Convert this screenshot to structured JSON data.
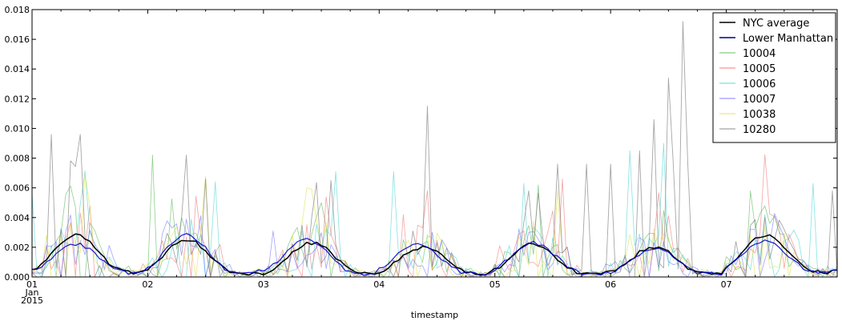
{
  "chart_data": {
    "type": "line",
    "title": "",
    "xlabel": "timestamp",
    "ylabel": "",
    "xlim": [
      "2015-01-01 00:00",
      "2015-01-07 23:00"
    ],
    "ylim": [
      0,
      0.018
    ],
    "grid": false,
    "legend_position": "top-right",
    "x_ticks": [
      {
        "date": "2015-01-01",
        "label": "01",
        "sub1": "Jan",
        "sub2": "2015"
      },
      {
        "date": "2015-01-02",
        "label": "02"
      },
      {
        "date": "2015-01-03",
        "label": "03"
      },
      {
        "date": "2015-01-04",
        "label": "04"
      },
      {
        "date": "2015-01-05",
        "label": "05"
      },
      {
        "date": "2015-01-06",
        "label": "06"
      },
      {
        "date": "2015-01-07",
        "label": "07"
      }
    ],
    "y_ticks": [
      "0.000",
      "0.002",
      "0.004",
      "0.006",
      "0.008",
      "0.010",
      "0.012",
      "0.014",
      "0.016",
      "0.018"
    ],
    "day_profiles": {
      "nyc_average": [
        {
          "date": "2015-01-01",
          "peak": 0.0028,
          "trough": 0.0003,
          "peak_hour": 9
        },
        {
          "date": "2015-01-02",
          "peak": 0.0025,
          "trough": 0.0002,
          "peak_hour": 8
        },
        {
          "date": "2015-01-03",
          "peak": 0.0023,
          "trough": 0.0002,
          "peak_hour": 10
        },
        {
          "date": "2015-01-04",
          "peak": 0.002,
          "trough": 0.0002,
          "peak_hour": 9
        },
        {
          "date": "2015-01-05",
          "peak": 0.0022,
          "trough": 0.0002,
          "peak_hour": 8
        },
        {
          "date": "2015-01-06",
          "peak": 0.002,
          "trough": 0.0002,
          "peak_hour": 9
        },
        {
          "date": "2015-01-07",
          "peak": 0.0028,
          "trough": 0.0003,
          "peak_hour": 8
        }
      ],
      "lower_manhattan": [
        {
          "date": "2015-01-01",
          "peak": 0.0022,
          "trough": 0.0003,
          "peak_hour": 9
        },
        {
          "date": "2015-01-02",
          "peak": 0.0028,
          "trough": 0.0002,
          "peak_hour": 8
        },
        {
          "date": "2015-01-03",
          "peak": 0.0025,
          "trough": 0.0002,
          "peak_hour": 9
        },
        {
          "date": "2015-01-04",
          "peak": 0.0022,
          "trough": 0.0002,
          "peak_hour": 8
        },
        {
          "date": "2015-01-05",
          "peak": 0.0023,
          "trough": 0.0002,
          "peak_hour": 8
        },
        {
          "date": "2015-01-06",
          "peak": 0.0019,
          "trough": 0.0002,
          "peak_hour": 9
        },
        {
          "date": "2015-01-07",
          "peak": 0.0024,
          "trough": 0.0003,
          "peak_hour": 8
        }
      ]
    },
    "spikes": {
      "10004": [
        [
          "2015-01-02 01:00",
          0.0082
        ],
        [
          "2015-01-03 12:00",
          0.005
        ],
        [
          "2015-01-05 09:00",
          0.0062
        ],
        [
          "2015-01-07 05:00",
          0.0058
        ]
      ],
      "10005": [
        [
          "2015-01-01 12:00",
          0.0048
        ],
        [
          "2015-01-03 13:00",
          0.0054
        ],
        [
          "2015-01-04 10:00",
          0.0058
        ],
        [
          "2015-01-05 14:00",
          0.0066
        ]
      ],
      "10006": [
        [
          "2015-01-01 00:00",
          0.0056
        ],
        [
          "2015-01-02 14:00",
          0.0064
        ],
        [
          "2015-01-03 15:00",
          0.0071
        ],
        [
          "2015-01-04 03:00",
          0.0071
        ],
        [
          "2015-01-05 06:00",
          0.0063
        ],
        [
          "2015-01-06 04:00",
          0.0085
        ],
        [
          "2015-01-06 11:00",
          0.009
        ],
        [
          "2015-01-07 18:00",
          0.0063
        ]
      ],
      "10007": [
        [
          "2015-01-02 05:00",
          0.0033
        ],
        [
          "2015-01-03 02:00",
          0.0031
        ],
        [
          "2015-01-07 06:00",
          0.0032
        ]
      ],
      "10038": [
        [
          "2015-01-02 12:00",
          0.0068
        ],
        [
          "2015-01-03 10:00",
          0.0059
        ],
        [
          "2015-01-05 13:00",
          0.0059
        ]
      ],
      "10280": [
        [
          "2015-01-01 04:00",
          0.0096
        ],
        [
          "2015-01-01 10:00",
          0.0096
        ],
        [
          "2015-01-02 08:00",
          0.0082
        ],
        [
          "2015-01-02 12:00",
          0.0066
        ],
        [
          "2015-01-03 14:00",
          0.0065
        ],
        [
          "2015-01-04 10:00",
          0.0115
        ],
        [
          "2015-01-05 07:00",
          0.0058
        ],
        [
          "2015-01-05 13:00",
          0.0076
        ],
        [
          "2015-01-05 19:00",
          0.0076
        ],
        [
          "2015-01-06 00:00",
          0.0076
        ],
        [
          "2015-01-06 06:00",
          0.0085
        ],
        [
          "2015-01-06 09:00",
          0.0106
        ],
        [
          "2015-01-06 12:00",
          0.0134
        ],
        [
          "2015-01-06 13:00",
          0.0076
        ],
        [
          "2015-01-06 15:00",
          0.0172
        ],
        [
          "2015-01-06 16:00",
          0.0078
        ],
        [
          "2015-01-07 22:00",
          0.0058
        ]
      ]
    },
    "series": [
      {
        "key": "nyc_average",
        "name": "NYC average",
        "color": "#000000",
        "width": 1.5,
        "opacity": 1,
        "kind": "smooth"
      },
      {
        "key": "lower_manhattan",
        "name": "Lower Manhattan",
        "color": "#0000cc",
        "legend_color": "#000080",
        "width": 1.2,
        "opacity": 0.9,
        "kind": "smooth"
      },
      {
        "key": "10004",
        "name": "10004",
        "color": "#33aa33",
        "width": 0.8,
        "opacity": 0.55,
        "kind": "noisy",
        "seed": 11
      },
      {
        "key": "10005",
        "name": "10005",
        "color": "#ee3333",
        "width": 0.8,
        "opacity": 0.45,
        "kind": "noisy",
        "seed": 23
      },
      {
        "key": "10006",
        "name": "10006",
        "color": "#22cccc",
        "width": 0.8,
        "opacity": 0.55,
        "kind": "noisy",
        "seed": 37
      },
      {
        "key": "10007",
        "name": "10007",
        "color": "#5555ff",
        "width": 0.8,
        "opacity": 0.55,
        "kind": "noisy",
        "seed": 41
      },
      {
        "key": "10038",
        "name": "10038",
        "color": "#dddd33",
        "width": 0.8,
        "opacity": 0.6,
        "kind": "noisy",
        "seed": 53
      },
      {
        "key": "10280",
        "name": "10280",
        "color": "#888888",
        "width": 0.9,
        "opacity": 0.75,
        "kind": "noisy",
        "seed": 67
      }
    ]
  }
}
